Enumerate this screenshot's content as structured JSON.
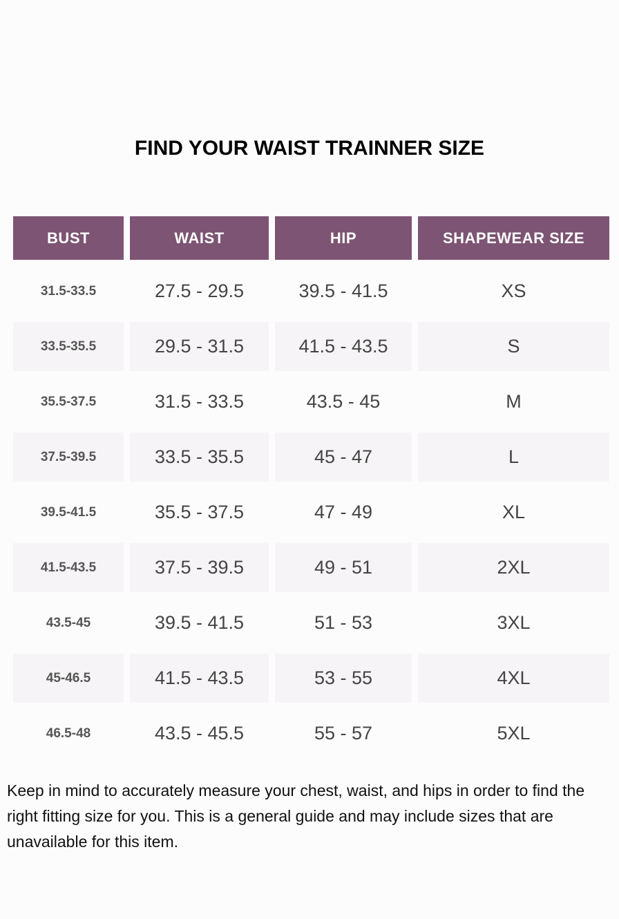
{
  "title": "FIND YOUR WAIST TRAINNER SIZE",
  "table": {
    "headers": [
      "BUST",
      "WAIST",
      "HIP",
      "SHAPEWEAR SIZE"
    ],
    "rows": [
      [
        "31.5-33.5",
        "27.5 - 29.5",
        "39.5 - 41.5",
        "XS"
      ],
      [
        "33.5-35.5",
        "29.5 - 31.5",
        "41.5 - 43.5",
        "S"
      ],
      [
        "35.5-37.5",
        "31.5 - 33.5",
        "43.5 - 45",
        "M"
      ],
      [
        "37.5-39.5",
        "33.5 - 35.5",
        "45 - 47",
        "L"
      ],
      [
        "39.5-41.5",
        "35.5 - 37.5",
        "47 - 49",
        "XL"
      ],
      [
        "41.5-43.5",
        "37.5 - 39.5",
        "49 - 51",
        "2XL"
      ],
      [
        "43.5-45",
        "39.5 - 41.5",
        "51 - 53",
        "3XL"
      ],
      [
        "45-46.5",
        "41.5 - 43.5",
        "53 - 55",
        "4XL"
      ],
      [
        "46.5-48",
        "43.5 - 45.5",
        "55 - 57",
        "5XL"
      ]
    ]
  },
  "note": "Keep in mind to accurately measure your chest, waist, and hips in order to find the right fitting size for you. This is a general guide and may include sizes that are unavailable for this item.",
  "colors": {
    "header": "#7d5473",
    "stripe": "#f6f4f6"
  }
}
